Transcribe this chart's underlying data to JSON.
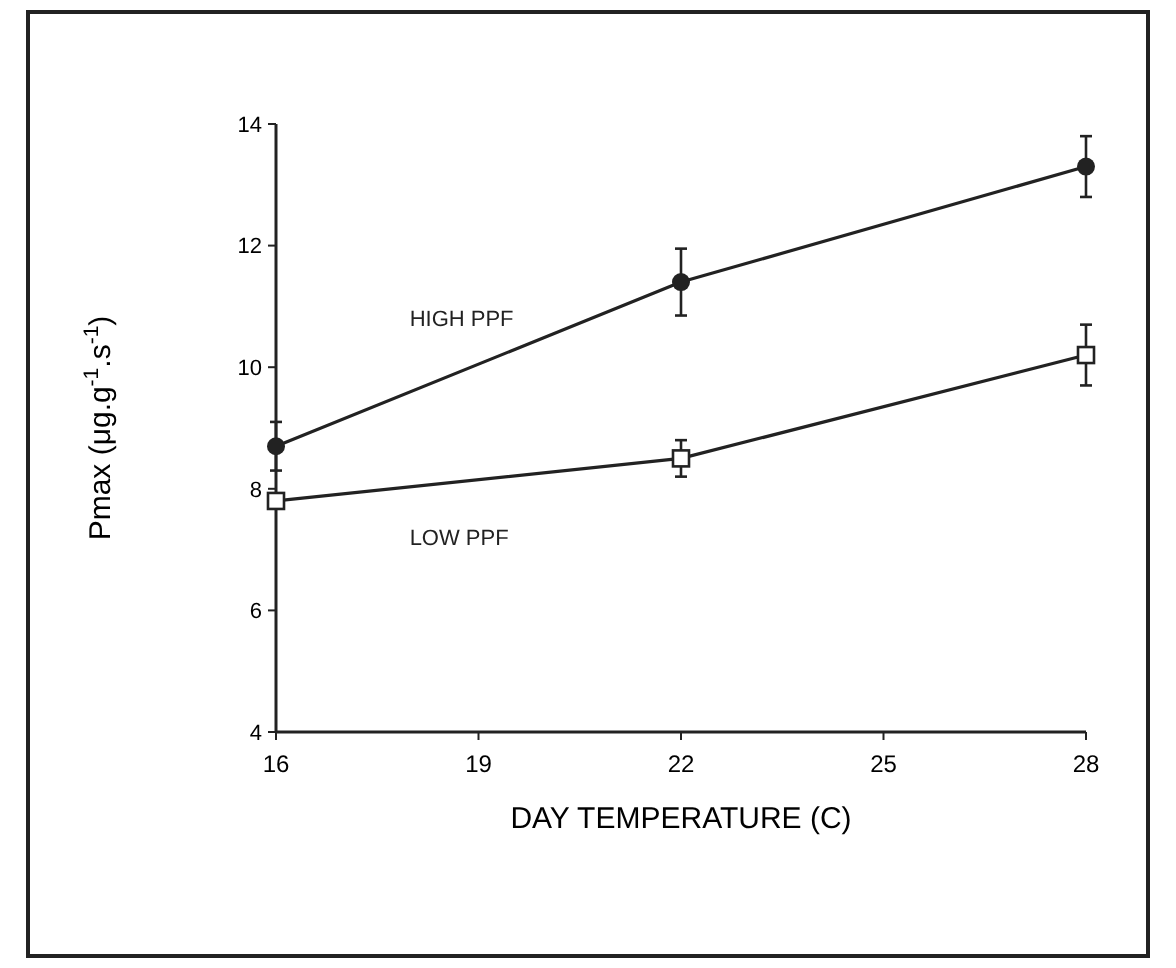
{
  "chart_data": {
    "type": "line",
    "xlabel": "DAY TEMPERATURE (C)",
    "ylabel": "Pmax (μg.g$^{-1}$.s$^{-1}$)",
    "x": [
      16,
      22,
      28
    ],
    "series": [
      {
        "name": "HIGH PPF",
        "color": "#222222",
        "marker": "circle",
        "values": [
          8.7,
          11.4,
          13.3
        ],
        "errors": [
          0.4,
          0.55,
          0.5
        ]
      },
      {
        "name": "LOW PPF",
        "color": "#222222",
        "marker": "square",
        "values": [
          7.8,
          8.5,
          10.2
        ],
        "errors": [
          null,
          0.3,
          0.5
        ]
      }
    ],
    "xlim": [
      16,
      28
    ],
    "xticks": [
      16,
      19,
      22,
      25,
      28
    ],
    "ylim": [
      4,
      14
    ],
    "yticks": [
      4,
      6,
      8,
      10,
      12,
      14
    ],
    "grid": false,
    "line_style": "solid"
  }
}
